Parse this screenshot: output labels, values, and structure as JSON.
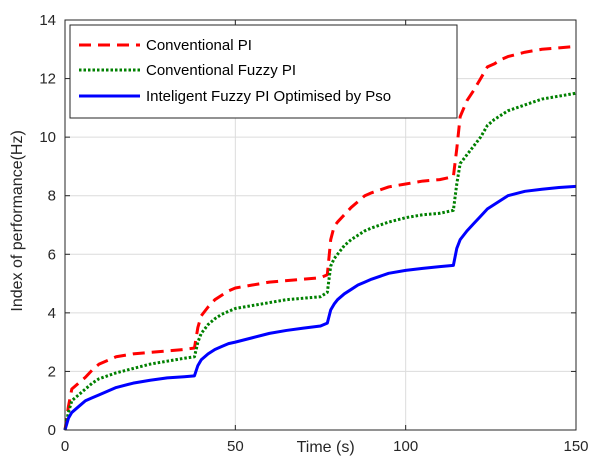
{
  "chart_data": {
    "type": "line",
    "title": "",
    "xlabel": "Time (s)",
    "ylabel": "Index of performance(Hz)",
    "xlim": [
      0,
      150
    ],
    "ylim": [
      0,
      14
    ],
    "xticks": [
      "0",
      "50",
      "100",
      "150"
    ],
    "yticks": [
      "0",
      "2",
      "4",
      "6",
      "8",
      "10",
      "12",
      "14"
    ],
    "grid": true,
    "legend_position": "top-left",
    "series": [
      {
        "name": "Conventional PI",
        "color": "#ff0000",
        "style": "dashed",
        "x": [
          0,
          1,
          2,
          4,
          6,
          8,
          10,
          15,
          20,
          25,
          30,
          35,
          38,
          39,
          40,
          42,
          44,
          46,
          48,
          50,
          55,
          60,
          65,
          70,
          75,
          77,
          78,
          79,
          80,
          82,
          84,
          86,
          88,
          90,
          95,
          100,
          105,
          110,
          114,
          115,
          116,
          118,
          120,
          122,
          124,
          126,
          128,
          130,
          135,
          140,
          145,
          150
        ],
        "y": [
          0,
          0.8,
          1.4,
          1.6,
          1.8,
          2.05,
          2.25,
          2.5,
          2.6,
          2.65,
          2.7,
          2.75,
          2.8,
          3.5,
          3.9,
          4.2,
          4.45,
          4.6,
          4.75,
          4.85,
          4.95,
          5.05,
          5.1,
          5.15,
          5.2,
          5.3,
          6.5,
          6.95,
          7.1,
          7.35,
          7.6,
          7.8,
          8.0,
          8.1,
          8.3,
          8.4,
          8.5,
          8.55,
          8.65,
          9.6,
          10.7,
          11.25,
          11.6,
          12.0,
          12.4,
          12.5,
          12.65,
          12.75,
          12.9,
          13.0,
          13.05,
          13.1
        ]
      },
      {
        "name": "Conventional Fuzzy PI",
        "color": "#008000",
        "style": "dotted",
        "x": [
          0,
          1,
          2,
          4,
          6,
          8,
          10,
          15,
          20,
          25,
          30,
          35,
          38,
          39,
          40,
          42,
          44,
          46,
          48,
          50,
          55,
          60,
          65,
          70,
          75,
          77,
          78,
          79,
          80,
          82,
          84,
          86,
          88,
          90,
          95,
          100,
          105,
          110,
          114,
          115,
          116,
          118,
          120,
          122,
          124,
          126,
          128,
          130,
          135,
          140,
          145,
          150
        ],
        "y": [
          0,
          0.6,
          1.0,
          1.2,
          1.4,
          1.6,
          1.75,
          1.95,
          2.1,
          2.25,
          2.35,
          2.45,
          2.5,
          3.0,
          3.3,
          3.6,
          3.8,
          3.95,
          4.05,
          4.15,
          4.25,
          4.35,
          4.45,
          4.5,
          4.55,
          4.7,
          5.6,
          5.85,
          6.0,
          6.3,
          6.5,
          6.65,
          6.8,
          6.9,
          7.1,
          7.25,
          7.35,
          7.4,
          7.5,
          8.4,
          9.1,
          9.4,
          9.7,
          10.0,
          10.4,
          10.6,
          10.75,
          10.9,
          11.1,
          11.3,
          11.4,
          11.5
        ]
      },
      {
        "name": "Inteligent Fuzzy PI Optimised by Pso",
        "color": "#0000ff",
        "style": "solid",
        "x": [
          0,
          1,
          2,
          4,
          6,
          8,
          10,
          15,
          20,
          25,
          30,
          35,
          38,
          39,
          40,
          42,
          44,
          46,
          48,
          50,
          55,
          60,
          65,
          70,
          75,
          77,
          78,
          79,
          80,
          82,
          84,
          86,
          88,
          90,
          95,
          100,
          105,
          110,
          114,
          115,
          116,
          118,
          120,
          122,
          124,
          126,
          128,
          130,
          135,
          140,
          145,
          150
        ],
        "y": [
          0,
          0.4,
          0.6,
          0.8,
          1.0,
          1.1,
          1.2,
          1.45,
          1.6,
          1.7,
          1.78,
          1.82,
          1.85,
          2.2,
          2.4,
          2.6,
          2.75,
          2.85,
          2.95,
          3.0,
          3.15,
          3.3,
          3.4,
          3.48,
          3.55,
          3.65,
          4.1,
          4.3,
          4.45,
          4.65,
          4.8,
          4.95,
          5.05,
          5.15,
          5.35,
          5.45,
          5.52,
          5.58,
          5.62,
          6.2,
          6.5,
          6.8,
          7.05,
          7.3,
          7.55,
          7.7,
          7.85,
          8.0,
          8.15,
          8.22,
          8.28,
          8.32
        ]
      }
    ]
  }
}
